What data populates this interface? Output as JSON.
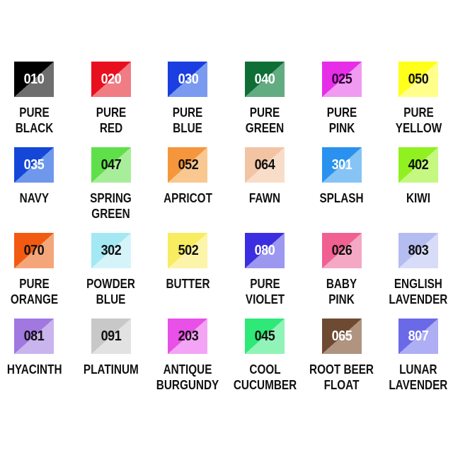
{
  "swatches": [
    {
      "code": "010",
      "name": [
        "PURE",
        "BLACK"
      ],
      "dark": "#000000",
      "light": "#6e6e6e",
      "text": "#ffffff"
    },
    {
      "code": "020",
      "name": [
        "PURE",
        "RED"
      ],
      "dark": "#e8101e",
      "light": "#f07c84",
      "text": "#ffffff"
    },
    {
      "code": "030",
      "name": [
        "PURE",
        "BLUE"
      ],
      "dark": "#1a3ee0",
      "light": "#7a9af0",
      "text": "#ffffff"
    },
    {
      "code": "040",
      "name": [
        "PURE",
        "GREEN"
      ],
      "dark": "#0f6e35",
      "light": "#62ac82",
      "text": "#ffffff"
    },
    {
      "code": "025",
      "name": [
        "PURE",
        "PINK"
      ],
      "dark": "#e62ee8",
      "light": "#f09af2",
      "text": "#2a0030"
    },
    {
      "code": "050",
      "name": [
        "PURE",
        "YELLOW"
      ],
      "dark": "#ffff1a",
      "light": "#ffff8a",
      "text": "#111111"
    },
    {
      "code": "035",
      "name": [
        "NAVY"
      ],
      "dark": "#1446d8",
      "light": "#6f98ec",
      "text": "#ffffff"
    },
    {
      "code": "047",
      "name": [
        "SPRING",
        "GREEN"
      ],
      "dark": "#5fe04a",
      "light": "#a8ee9a",
      "text": "#111111"
    },
    {
      "code": "052",
      "name": [
        "APRICOT"
      ],
      "dark": "#f5963c",
      "light": "#f8c890",
      "text": "#111111"
    },
    {
      "code": "064",
      "name": [
        "FAWN"
      ],
      "dark": "#f3c4a4",
      "light": "#f8ddc8",
      "text": "#111111"
    },
    {
      "code": "301",
      "name": [
        "SPLASH"
      ],
      "dark": "#2a92ee",
      "light": "#86c4f6",
      "text": "#ffffff"
    },
    {
      "code": "402",
      "name": [
        "KIWI"
      ],
      "dark": "#90f020",
      "light": "#c4f880",
      "text": "#111111"
    },
    {
      "code": "070",
      "name": [
        "PURE",
        "ORANGE"
      ],
      "dark": "#f25a12",
      "light": "#f4a67a",
      "text": "#111111"
    },
    {
      "code": "302",
      "name": [
        "POWDER",
        "BLUE"
      ],
      "dark": "#a4e8f4",
      "light": "#d4f4fa",
      "text": "#111111"
    },
    {
      "code": "502",
      "name": [
        "BUTTER"
      ],
      "dark": "#f8ec60",
      "light": "#fcf4a8",
      "text": "#111111"
    },
    {
      "code": "080",
      "name": [
        "PURE",
        "VIOLET"
      ],
      "dark": "#3a2ee0",
      "light": "#9c98f0",
      "text": "#ffffff"
    },
    {
      "code": "026",
      "name": [
        "BABY",
        "PINK"
      ],
      "dark": "#f06090",
      "light": "#f4a8c4",
      "text": "#111111"
    },
    {
      "code": "803",
      "name": [
        "ENGLISH",
        "LAVENDER"
      ],
      "dark": "#b4bcf0",
      "light": "#d8dcf8",
      "text": "#111111"
    },
    {
      "code": "081",
      "name": [
        "HYACINTH"
      ],
      "dark": "#a078e0",
      "light": "#cab4ee",
      "text": "#111111"
    },
    {
      "code": "091",
      "name": [
        "PLATINUM"
      ],
      "dark": "#c8c8c8",
      "light": "#e2e2e2",
      "text": "#111111"
    },
    {
      "code": "203",
      "name": [
        "ANTIQUE",
        "BURGUNDY"
      ],
      "dark": "#e850e8",
      "light": "#f4a4f4",
      "text": "#111111"
    },
    {
      "code": "045",
      "name": [
        "COOL",
        "CUCUMBER"
      ],
      "dark": "#2ee878",
      "light": "#90f4b8",
      "text": "#111111"
    },
    {
      "code": "065",
      "name": [
        "ROOT BEER",
        "FLOAT"
      ],
      "dark": "#6e4a32",
      "light": "#b09480",
      "text": "#ffffff"
    },
    {
      "code": "807",
      "name": [
        "LUNAR",
        "LAVENDER"
      ],
      "dark": "#6a6ae8",
      "light": "#aeaef4",
      "text": "#ffffff"
    }
  ]
}
